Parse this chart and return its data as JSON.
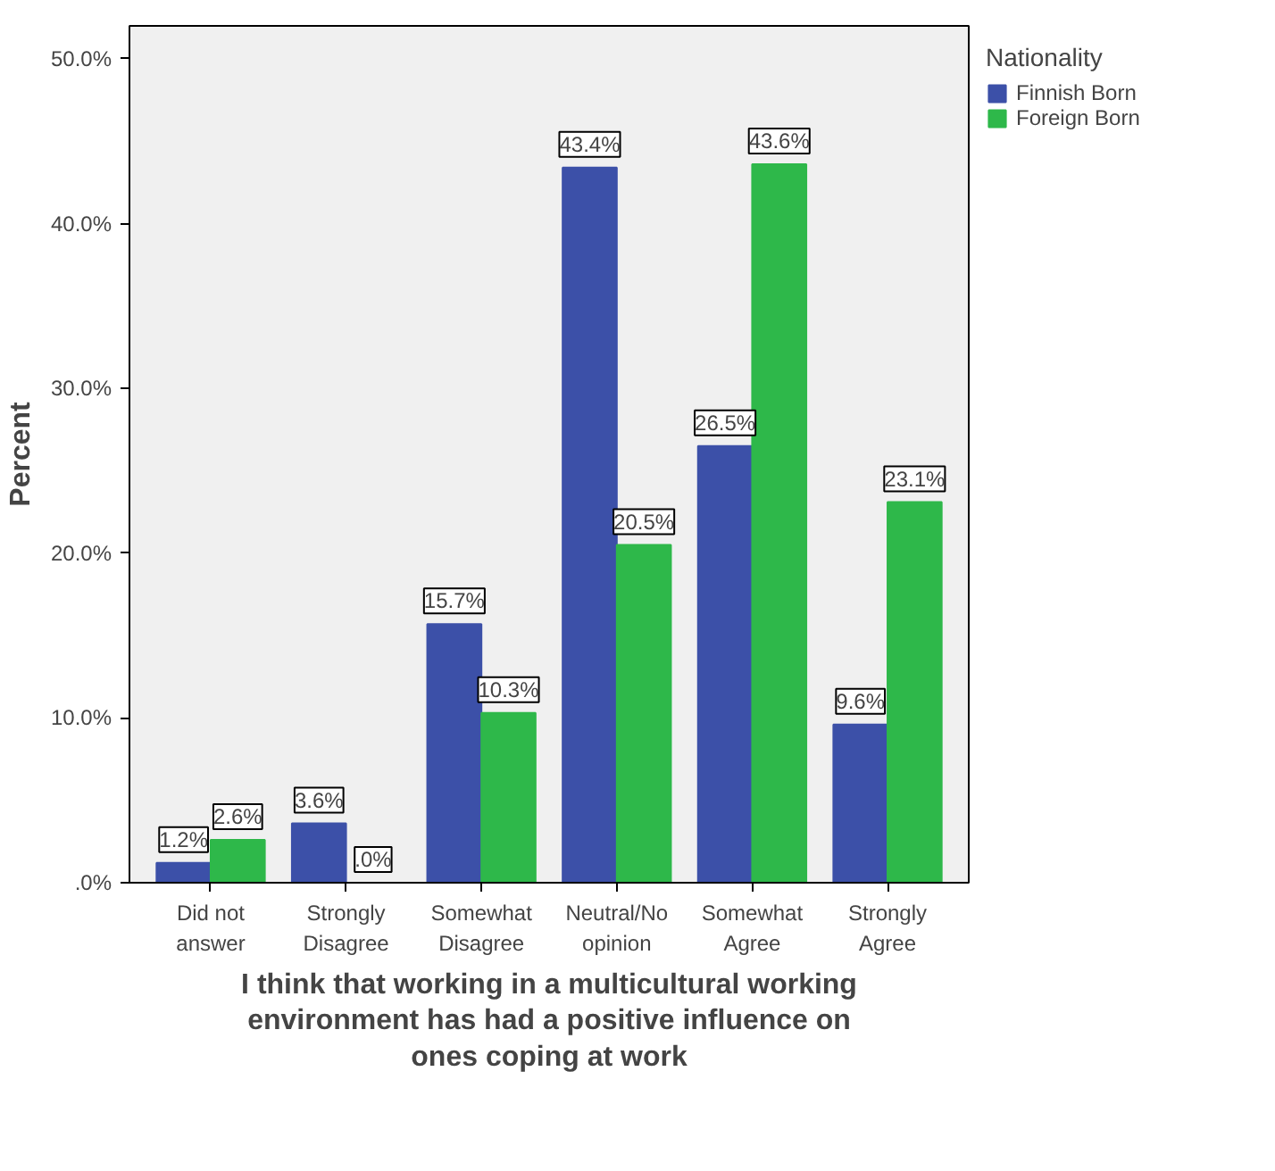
{
  "chart_data": {
    "type": "bar",
    "xlabel": "I think that working in a multicultural working\nenvironment has had a positive influence on\nones coping at work",
    "ylabel": "Percent",
    "legend_title": "Nationality",
    "legend": "right",
    "grid": false,
    "categories": [
      "Did not\nanswer",
      "Strongly\nDisagree",
      "Somewhat\nDisagree",
      "Neutral/No\nopinion",
      "Somewhat\nAgree",
      "Strongly\nAgree"
    ],
    "ylim": [
      0,
      52
    ],
    "yticks": [
      {
        "value": 0,
        "label": ".0%"
      },
      {
        "value": 10,
        "label": "10.0%"
      },
      {
        "value": 20,
        "label": "20.0%"
      },
      {
        "value": 30,
        "label": "30.0%"
      },
      {
        "value": 40,
        "label": "40.0%"
      },
      {
        "value": 50,
        "label": "50.0%"
      }
    ],
    "series": [
      {
        "name": "Finnish Born",
        "color": "#3c50a8",
        "values": [
          1.2,
          3.6,
          15.7,
          43.4,
          26.5,
          9.6
        ],
        "value_labels": [
          "1.2%",
          "3.6%",
          "15.7%",
          "43.4%",
          "26.5%",
          "9.6%"
        ]
      },
      {
        "name": "Foreign Born",
        "color": "#2eb84a",
        "values": [
          2.6,
          0.0,
          10.3,
          20.5,
          43.6,
          23.1
        ],
        "value_labels": [
          "2.6%",
          ".0%",
          "10.3%",
          "20.5%",
          "43.6%",
          "23.1%"
        ]
      }
    ]
  }
}
